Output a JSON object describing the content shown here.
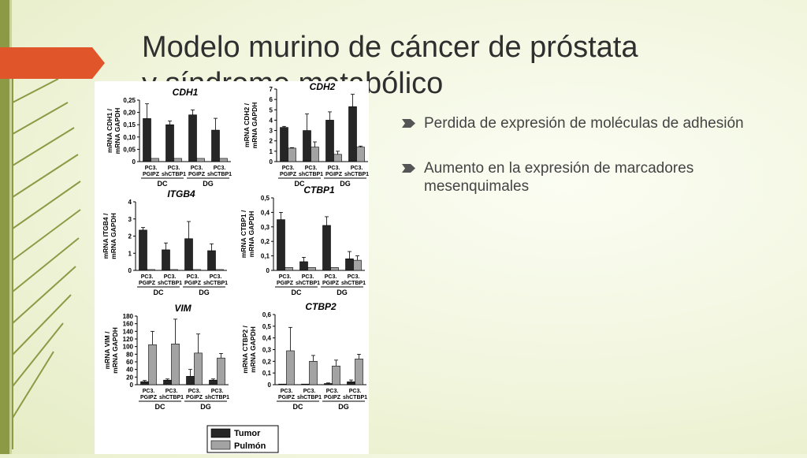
{
  "slide": {
    "title_line1": "Modelo murino de cáncer de próstata",
    "title_line2": "y síndrome metabólico"
  },
  "bullets": [
    "Perdida de expresión de moléculas de adhesión",
    "Aumento en la expresión de marcadores mesenquimales"
  ],
  "colors": {
    "accent": "#e0552a",
    "stripe": "#8d9a45",
    "tumor": "#262626",
    "pulmon": "#a3a3a3"
  },
  "legend": {
    "tumor": "Tumor",
    "pulmon": "Pulmón"
  },
  "chart_data": [
    {
      "type": "bar",
      "title": "CDH1",
      "ylabel": "mRNA CDH1 / mRNA GAPDH",
      "yticks": [
        "0,25",
        "0,20",
        "0,15",
        "0,10",
        "0,05",
        "0"
      ],
      "ylim": [
        0,
        0.25
      ],
      "categories": [
        "PC3. PGIPZ",
        "PC3. shCTBP1",
        "PC3. PGIPZ",
        "PC3. shCTBP1"
      ],
      "groups": [
        "DC",
        "DG"
      ],
      "series": [
        {
          "name": "Tumor",
          "values": [
            0.175,
            0.15,
            0.19,
            0.128
          ],
          "errors": [
            0.06,
            0.015,
            0.02,
            0.048
          ]
        },
        {
          "name": "Pulmón",
          "values": [
            0.013,
            0.013,
            0.013,
            0.013
          ],
          "errors": [
            0,
            0,
            0,
            0
          ]
        }
      ]
    },
    {
      "type": "bar",
      "title": "CDH2",
      "ylabel": "mRNA CDH2 / mRNA GAPDH",
      "yticks": [
        "7",
        "6",
        "5",
        "4",
        "3",
        "2",
        "1",
        "0"
      ],
      "ylim": [
        0,
        7
      ],
      "categories": [
        "PC3. PGIPZ",
        "PC3. shCTBP1",
        "PC3. PGIPZ",
        "PC3. shCTBP1"
      ],
      "groups": [
        "DC",
        "DG"
      ],
      "series": [
        {
          "name": "Tumor",
          "values": [
            3.3,
            3.0,
            4.0,
            5.3
          ],
          "errors": [
            0.1,
            1.6,
            0.8,
            1.2
          ]
        },
        {
          "name": "Pulmón",
          "values": [
            1.3,
            1.4,
            0.7,
            1.4
          ],
          "errors": [
            0.05,
            0.5,
            0.3,
            0.1
          ]
        }
      ]
    },
    {
      "type": "bar",
      "title": "ITGB4",
      "ylabel": "mRNA ITGB4 / mRNA GAPDH",
      "yticks": [
        "4",
        "3",
        "2",
        "1",
        "0"
      ],
      "ylim": [
        0,
        4
      ],
      "categories": [
        "PC3. PGIPZ",
        "PC3. shCTBP1",
        "PC3. PGIPZ",
        "PC3. shCTBP1"
      ],
      "groups": [
        "DC",
        "DG"
      ],
      "series": [
        {
          "name": "Tumor",
          "values": [
            2.35,
            1.2,
            1.85,
            1.15
          ],
          "errors": [
            0.15,
            0.4,
            1.0,
            0.4
          ]
        },
        {
          "name": "Pulmón",
          "values": [
            0.05,
            0.05,
            0.05,
            0.05
          ],
          "errors": [
            0,
            0,
            0,
            0
          ]
        }
      ]
    },
    {
      "type": "bar",
      "title": "CTBP1",
      "ylabel": "mRNA CTBP1 / mRNA GAPDH",
      "yticks": [
        "0,5",
        "0,4",
        "0,3",
        "0,2",
        "0,1",
        "0"
      ],
      "ylim": [
        0,
        0.5
      ],
      "categories": [
        "PC3. PGIPZ",
        "PC3. shCTBP1",
        "PC3. PGIPZ",
        "PC3. shCTBP1"
      ],
      "groups": [
        "DC",
        "DG"
      ],
      "series": [
        {
          "name": "Tumor",
          "values": [
            0.35,
            0.06,
            0.31,
            0.08
          ],
          "errors": [
            0.05,
            0.03,
            0.06,
            0.05
          ]
        },
        {
          "name": "Pulmón",
          "values": [
            0.02,
            0.02,
            0.02,
            0.07
          ],
          "errors": [
            0,
            0,
            0,
            0.03
          ]
        }
      ]
    },
    {
      "type": "bar",
      "title": "VIM",
      "ylabel": "mRNA VIM / mRNA GAPDH",
      "yticks": [
        "180",
        "160",
        "140",
        "120",
        "100",
        "80",
        "60",
        "40",
        "20",
        "0"
      ],
      "ylim": [
        0,
        180
      ],
      "categories": [
        "PC3. PGIPZ",
        "PC3. shCTBP1",
        "PC3. PGIPZ",
        "PC3. shCTBP1"
      ],
      "groups": [
        "DC",
        "DG"
      ],
      "series": [
        {
          "name": "Tumor",
          "values": [
            8,
            12,
            22,
            12
          ],
          "errors": [
            3,
            3,
            18,
            3
          ]
        },
        {
          "name": "Pulmón",
          "values": [
            105,
            107,
            83,
            70
          ],
          "errors": [
            35,
            65,
            50,
            12
          ]
        }
      ]
    },
    {
      "type": "bar",
      "title": "CTBP2",
      "ylabel": "mRNA CTBP2 / mRNA GAPDH",
      "yticks": [
        "0,6",
        "0,5",
        "0,4",
        "0,3",
        "0,2",
        "0,1",
        "0"
      ],
      "ylim": [
        0,
        0.6
      ],
      "categories": [
        "PC3. PGIPZ",
        "PC3. shCTBP1",
        "PC3. PGIPZ",
        "PC3. shCTBP1"
      ],
      "groups": [
        "DC",
        "DG"
      ],
      "series": [
        {
          "name": "Tumor",
          "values": [
            0.005,
            0.005,
            0.01,
            0.025
          ],
          "errors": [
            0,
            0,
            0.005,
            0.015
          ]
        },
        {
          "name": "Pulmón",
          "values": [
            0.29,
            0.2,
            0.16,
            0.22
          ],
          "errors": [
            0.2,
            0.05,
            0.05,
            0.04
          ]
        }
      ]
    }
  ]
}
